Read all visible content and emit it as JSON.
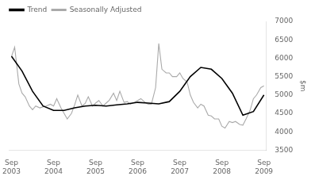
{
  "chart_data": {
    "type": "line",
    "ylabel": "$m",
    "xlim": [
      -0.2,
      24.2
    ],
    "xticks": [
      {
        "value": 0,
        "label": "Sep\n2003"
      },
      {
        "value": 4,
        "label": "Sep\n2004"
      },
      {
        "value": 8,
        "label": "Sep\n2005"
      },
      {
        "value": 12,
        "label": "Sep\n2006"
      },
      {
        "value": 16,
        "label": "Sep\n2007"
      },
      {
        "value": 20,
        "label": "Sep\n2008"
      },
      {
        "value": 24,
        "label": "Sep\n2009"
      }
    ],
    "ylim": [
      3500,
      7000
    ],
    "yticks": [
      3500,
      4000,
      4500,
      5000,
      5500,
      6000,
      6500,
      7000
    ],
    "grid": false,
    "legend": "upper left",
    "background_color": "#ffffff",
    "series": [
      {
        "name": "Trend",
        "color": "#000000",
        "x": [
          0,
          1,
          2,
          3,
          4,
          5,
          6,
          7,
          8,
          9,
          10,
          11,
          12,
          13,
          14,
          15,
          16,
          17,
          18,
          19,
          20,
          21,
          22,
          23,
          24
        ],
        "values": [
          6050,
          5650,
          5100,
          4700,
          4580,
          4580,
          4650,
          4700,
          4720,
          4700,
          4730,
          4760,
          4800,
          4780,
          4760,
          4820,
          5100,
          5500,
          5750,
          5700,
          5450,
          5050,
          4450,
          4550,
          5000
        ]
      },
      {
        "name": "Seasonally Adjusted",
        "color": "#aaaaaa",
        "x": [
          0,
          0.3,
          0.7,
          1.0,
          1.3,
          1.7,
          2.0,
          2.3,
          2.7,
          3.0,
          3.3,
          3.7,
          4.0,
          4.3,
          4.7,
          5.0,
          5.3,
          5.7,
          6.0,
          6.3,
          6.7,
          7.0,
          7.3,
          7.7,
          8.0,
          8.3,
          8.7,
          9.0,
          9.3,
          9.7,
          10.0,
          10.3,
          10.7,
          11.0,
          11.3,
          11.7,
          12.0,
          12.3,
          12.7,
          13.0,
          13.3,
          13.7,
          14.0,
          14.3,
          14.7,
          15.0,
          15.3,
          15.7,
          16.0,
          16.3,
          16.7,
          17.0,
          17.3,
          17.7,
          18.0,
          18.3,
          18.7,
          19.0,
          19.3,
          19.7,
          20.0,
          20.3,
          20.7,
          21.0,
          21.3,
          21.7,
          22.0,
          22.3,
          22.7,
          23.0,
          23.3,
          23.7,
          24.0
        ],
        "values": [
          6050,
          6300,
          5300,
          5050,
          4950,
          4700,
          4600,
          4700,
          4650,
          4680,
          4700,
          4750,
          4700,
          4900,
          4650,
          4500,
          4350,
          4500,
          4730,
          5000,
          4700,
          4770,
          4950,
          4700,
          4780,
          4850,
          4700,
          4780,
          4860,
          5050,
          4850,
          5100,
          4800,
          4820,
          4750,
          4800,
          4850,
          4900,
          4800,
          4750,
          4750,
          5200,
          6400,
          5700,
          5600,
          5600,
          5500,
          5500,
          5600,
          5450,
          5350,
          5000,
          4800,
          4650,
          4750,
          4700,
          4450,
          4430,
          4350,
          4350,
          4150,
          4100,
          4280,
          4250,
          4280,
          4200,
          4180,
          4350,
          4600,
          4900,
          5000,
          5200,
          5250
        ]
      }
    ]
  }
}
